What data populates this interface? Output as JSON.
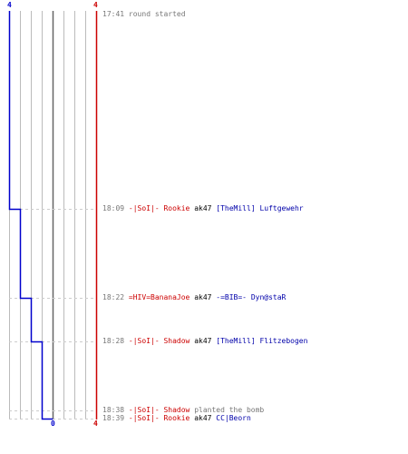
{
  "scores": {
    "blue_top": "4",
    "red_top": "4",
    "blue_bottom": "0",
    "red_bottom": "4"
  },
  "colors": {
    "team_blue": "#0000cc",
    "team_red": "#cc0000",
    "grid": "#bbbbbb",
    "dashed": "#cccccc",
    "center_line": "#666666"
  },
  "events": [
    {
      "time": "17:41",
      "message": "round started"
    },
    {
      "time": "18:09",
      "killer": "-|SoI|- Rookie",
      "weapon": "ak47",
      "victim": "[TheMill] Luftgewehr"
    },
    {
      "time": "18:22",
      "killer": "=HIV=BananaJoe",
      "weapon": "ak47",
      "victim": "-=BIB=- Dyn@staR"
    },
    {
      "time": "18:28",
      "killer": "-|SoI|- Shadow",
      "weapon": "ak47",
      "victim": "[TheMill] Flitzebogen"
    },
    {
      "time": "18:38",
      "killer": "-|SoI|- Shadow",
      "message": "planted the bomb"
    },
    {
      "time": "18:39",
      "killer": "-|SoI|- Rookie",
      "weapon": "ak47",
      "victim": "CC|Beorn"
    }
  ]
}
